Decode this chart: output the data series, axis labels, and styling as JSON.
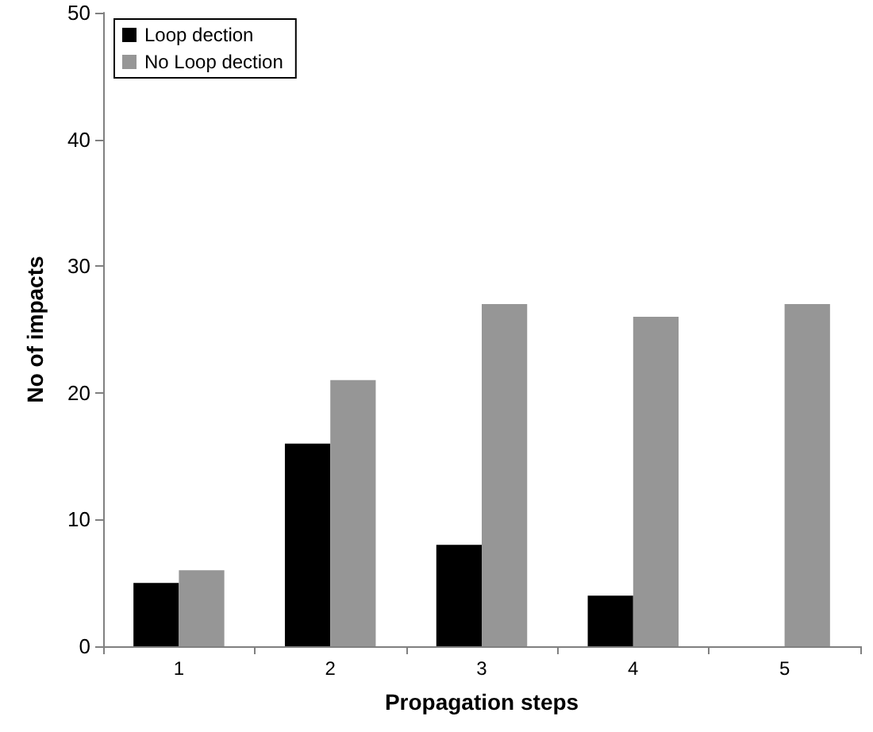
{
  "chart_data": {
    "type": "bar",
    "xlabel": "Propagation steps",
    "ylabel": "No of impacts",
    "categories": [
      "1",
      "2",
      "3",
      "4",
      "5"
    ],
    "series": [
      {
        "name": "Loop dection",
        "color": "#000000",
        "values": [
          5,
          16,
          8,
          4,
          0
        ]
      },
      {
        "name": "No Loop dection",
        "color": "#969696",
        "values": [
          6,
          21,
          27,
          26,
          27
        ]
      }
    ],
    "ylim": [
      0,
      50
    ],
    "yticks": [
      0,
      10,
      20,
      30,
      40,
      50
    ],
    "grid": false,
    "legend": "top left"
  }
}
